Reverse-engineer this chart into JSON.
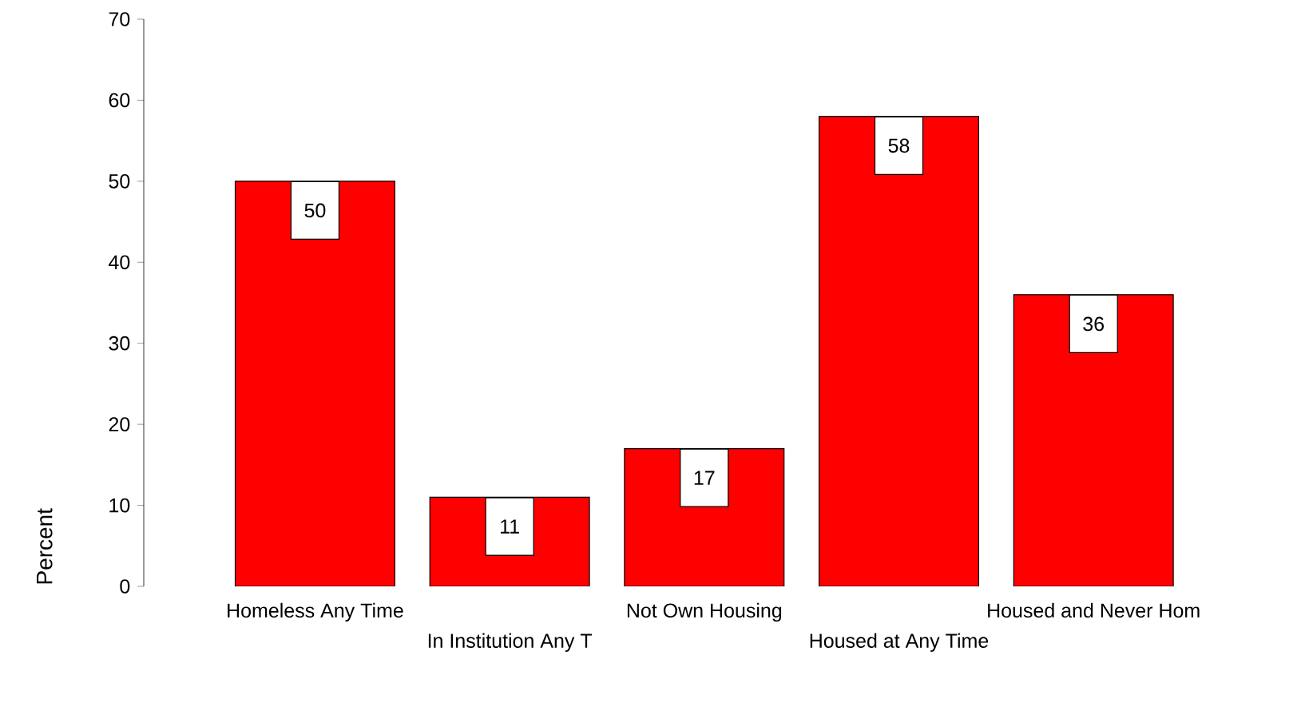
{
  "chart_data": {
    "type": "bar",
    "ylabel": "Percent",
    "categories": [
      "Homeless Any Time",
      "In Institution Any T",
      "Not Own Housing",
      "Housed at Any Time",
      "Housed and Never Hom"
    ],
    "values": [
      50,
      11,
      17,
      58,
      36
    ],
    "color": "#ff0000",
    "ylim": [
      0,
      70
    ],
    "yticks": [
      0,
      10,
      20,
      30,
      40,
      50,
      60,
      70
    ],
    "data_labels": true,
    "grid": false
  }
}
